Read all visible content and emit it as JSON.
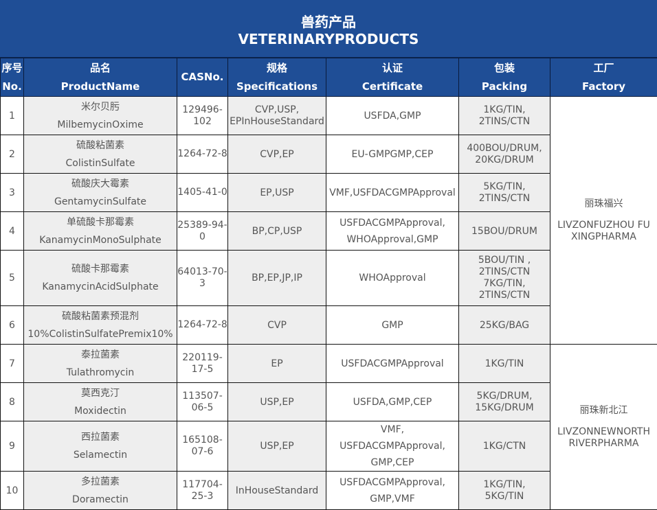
{
  "title": {
    "zh": "兽药产品",
    "en": "VETERINARYPRODUCTS"
  },
  "headers": [
    {
      "zh": "序号",
      "en": "No."
    },
    {
      "zh": "品名",
      "en": "ProductName"
    },
    {
      "zh": "",
      "en": "CASNo."
    },
    {
      "zh": "规格",
      "en": "Specifications"
    },
    {
      "zh": "认证",
      "en": "Certificate"
    },
    {
      "zh": "包装",
      "en": "Packing"
    },
    {
      "zh": "工厂",
      "en": "Factory"
    }
  ],
  "rows": [
    {
      "no": "1",
      "zh": "米尔贝肟",
      "en": "MilbemycinOxime",
      "cas": "129496-102",
      "spec": "CVP,USP, EPInHouseStandard",
      "cert": "USFDA,GMP",
      "pack": "1KG/TIN, 2TINS/CTN"
    },
    {
      "no": "2",
      "zh": "硫酸粘菌素",
      "en": "ColistinSulfate",
      "cas": "1264-72-8",
      "spec": "CVP,EP",
      "cert": "EU-GMPGMP,CEP",
      "pack": "400BOU/DRUM, 20KG/DRUM"
    },
    {
      "no": "3",
      "zh": "硫酸庆大霉素",
      "en": "GentamycinSulfate",
      "cas": "1405-41-0",
      "spec": "EP,USP",
      "cert": "VMF,USFDACGMPApproval",
      "pack": "5KG/TIN, 2TINS/CTN"
    },
    {
      "no": "4",
      "zh": "单硫酸卡那霉素",
      "en": "KanamycinMonoSulphate",
      "cas": "25389-94-0",
      "spec": "BP,CP,USP",
      "cert": "USFDACGMPApproval, WHOApproval,GMP",
      "pack": "15BOU/DRUM"
    },
    {
      "no": "5",
      "zh": "硫酸卡那霉素",
      "en": "KanamycinAcidSulphate",
      "cas": "64013-70-3",
      "spec": "BP,EP,JP,IP",
      "cert": "WHOApproval",
      "pack": "5BOU/TIN , 2TINS/CTN 7KG/TIN, 2TINS/CTN"
    },
    {
      "no": "6",
      "zh": "硫酸粘菌素预混剂",
      "en": "10%ColistinSulfatePremix10%",
      "cas": "1264-72-8",
      "spec": "CVP",
      "cert": "GMP",
      "pack": "25KG/BAG"
    },
    {
      "no": "7",
      "zh": "泰拉菌素",
      "en": "Tulathromycin",
      "cas": "220119-17-5",
      "spec": "EP",
      "cert": "USFDACGMPApproval",
      "pack": "1KG/TIN"
    },
    {
      "no": "8",
      "zh": "莫西克汀",
      "en": "Moxidectin",
      "cas": "113507-06-5",
      "spec": "USP,EP",
      "cert": "USFDA,GMP,CEP",
      "pack": "5KG/DRUM, 15KG/DRUM"
    },
    {
      "no": "9",
      "zh": "西拉菌素",
      "en": "Selamectin",
      "cas": "165108-07-6",
      "spec": "USP,EP",
      "cert": "VMF, USFDACGMPApproval, GMP,CEP",
      "pack": "1KG/CTN"
    },
    {
      "no": "10",
      "zh": "多拉菌素",
      "en": "Doramectin",
      "cas": "117704-25-3",
      "spec": "InHouseStandard",
      "cert": "USFDACGMPApproval, GMP,VMF",
      "pack": "1KG/TIN, 5KG/TIN"
    }
  ],
  "factories": [
    {
      "zh": "丽珠福兴",
      "en": "LIVZONFUZHOU FUXINGPHARMA"
    },
    {
      "zh": "丽珠新北江",
      "en": "LIVZONNEWNORTH RIVERPHARMA"
    }
  ]
}
